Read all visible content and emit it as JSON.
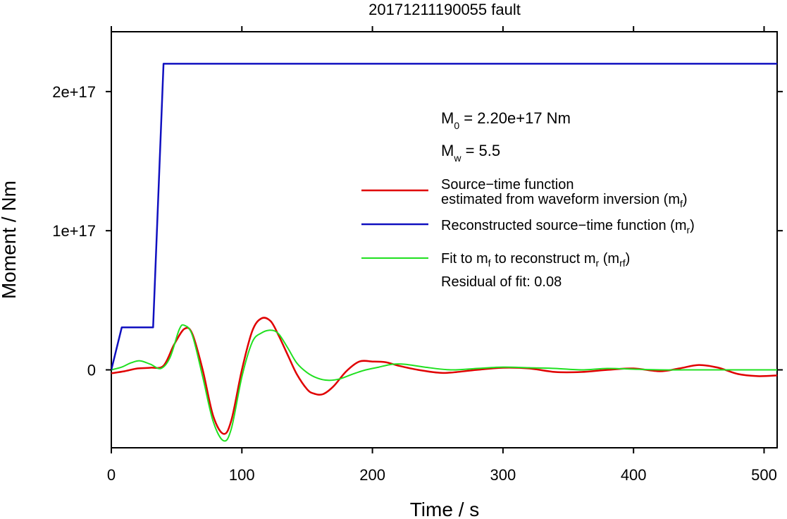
{
  "chart_data": {
    "type": "line",
    "title": "20171211190055 fault",
    "xlabel": "Time / s",
    "ylabel": "Moment / Nm",
    "xlim": [
      0,
      510
    ],
    "ylim": [
      -5.6e+16,
      2.43e+17
    ],
    "grid": false,
    "legend_placement": "right",
    "x_ticks": [
      0,
      100,
      200,
      300,
      400,
      500
    ],
    "x_tick_labels": [
      "0",
      "100",
      "200",
      "300",
      "400",
      "500"
    ],
    "y_ticks": [
      0,
      1e+17,
      2e+17
    ],
    "y_tick_labels": [
      "0",
      "1e+17",
      "2e+17"
    ],
    "annotations": {
      "m0_label": "M",
      "m0_sub": "0",
      "m0_value": " = 2.20e+17 Nm",
      "mw_label": "M",
      "mw_sub": "w",
      "mw_value": " = 5.5",
      "residual": "Residual of fit: 0.08"
    },
    "legend": {
      "red_line1": "Source−time function",
      "red_line2": "estimated from waveform inversion (m",
      "red_sub": "f",
      "red_end": ")",
      "blue_text": "Reconstructed source−time function (m",
      "blue_sub": "r",
      "blue_end": ")",
      "green_a": "Fit to m",
      "green_sub1": "f",
      "green_b": " to reconstruct m",
      "green_sub2": "r",
      "green_c": " (m",
      "green_sub3": "rf",
      "green_d": ")"
    },
    "series": [
      {
        "id": "reconstructed",
        "color": "#1010c0",
        "x": [
          0,
          8,
          32,
          40,
          510
        ],
        "y": [
          0,
          3.05e+16,
          3.05e+16,
          2.2e+17,
          2.2e+17
        ]
      },
      {
        "id": "estimated",
        "color": "#e00000",
        "x": [
          0,
          10,
          20,
          30,
          40,
          48,
          56,
          62,
          70,
          78,
          86,
          92,
          100,
          108,
          115,
          122,
          128,
          135,
          142,
          150,
          155,
          162,
          170,
          180,
          190,
          200,
          210,
          220,
          235,
          250,
          260,
          280,
          300,
          320,
          340,
          360,
          380,
          400,
          420,
          435,
          450,
          465,
          480,
          495,
          510
        ],
        "y": [
          -2500000000000000.0,
          -1000000000000000.0,
          1000000000000000.0,
          1500000000000000.0,
          3000000000000000.0,
          1.8e+16,
          2.95e+16,
          2.6e+16,
          0,
          -3.3e+16,
          -4.6e+16,
          -3.6e+16,
          0,
          2.8e+16,
          3.7e+16,
          3.5e+16,
          2.5e+16,
          1.1e+16,
          -3000000000000000.0,
          -1.4e+16,
          -1.7e+16,
          -1.75e+16,
          -1.2e+16,
          -1000000000000000.0,
          6000000000000000.0,
          6000000000000000.0,
          5500000000000000.0,
          3000000000000000.0,
          0,
          -2000000000000000.0,
          -2000000000000000.0,
          0,
          1500000000000000.0,
          1000000000000000.0,
          -1500000000000000.0,
          -1500000000000000.0,
          0,
          1000000000000000.0,
          -1000000000000000.0,
          1000000000000000.0,
          3500000000000000.0,
          1500000000000000.0,
          -3000000000000000.0,
          -4500000000000000.0,
          -4000000000000000.0
        ]
      },
      {
        "id": "fit",
        "color": "#20e020",
        "x": [
          0,
          8,
          15,
          22,
          30,
          38,
          45,
          52,
          56,
          62,
          70,
          78,
          86,
          92,
          100,
          108,
          115,
          122,
          128,
          135,
          142,
          150,
          158,
          166,
          175,
          185,
          195,
          205,
          215,
          225,
          240,
          260,
          280,
          300,
          320,
          340,
          360,
          380,
          400,
          420,
          450,
          480,
          510
        ],
        "y": [
          0,
          2000000000000000.0,
          5000000000000000.0,
          6500000000000000.0,
          4000000000000000.0,
          1000000000000000.0,
          9000000000000000.0,
          2.9e+16,
          3.2e+16,
          2.5e+16,
          -5000000000000000.0,
          -3.7e+16,
          -5.1e+16,
          -4.2e+16,
          -5000000000000000.0,
          2e+16,
          2.65e+16,
          2.85e+16,
          2.6e+16,
          1.6e+16,
          5000000000000000.0,
          -2000000000000000.0,
          -6000000000000000.0,
          -7500000000000000.0,
          -6500000000000000.0,
          -3000000000000000.0,
          0,
          2000000000000000.0,
          4000000000000000.0,
          4000000000000000.0,
          2000000000000000.0,
          0,
          1000000000000000.0,
          2000000000000000.0,
          1500000000000000.0,
          1000000000000000.0,
          0,
          1000000000000000.0,
          500000000000000.0,
          0,
          0,
          0,
          0
        ]
      }
    ]
  }
}
